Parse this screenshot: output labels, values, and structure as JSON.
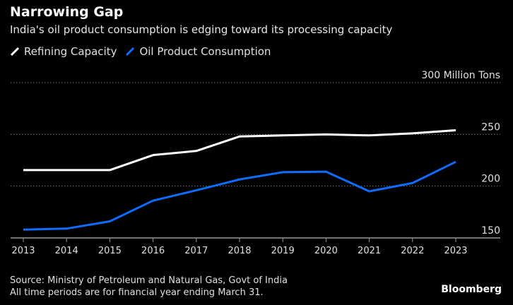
{
  "title": "Narrowing Gap",
  "subtitle": "India's oil product consumption is edging toward its processing capacity",
  "source": "Source: Ministry of Petroleum and Natural Gas, Govt of India",
  "note": "All time periods are for financial year ending March 31.",
  "brand": "Bloomberg",
  "chart_data": {
    "type": "line",
    "title": "Narrowing Gap",
    "ylabel": "Million Tons",
    "ylim": [
      150,
      300
    ],
    "yticks": [
      150,
      200,
      250,
      300
    ],
    "ytick_labels": [
      "150",
      "200",
      "250",
      "300 Million Tons"
    ],
    "grid": true,
    "legend_placement": "top-left",
    "x": [
      "2013",
      "2014",
      "2015",
      "2016",
      "2017",
      "2018",
      "2019",
      "2020",
      "2021",
      "2022",
      "2023"
    ],
    "series": [
      {
        "name": "Refining Capacity",
        "color": "#ffffff",
        "values": [
          215.5,
          215.5,
          215.5,
          230,
          234,
          248,
          249,
          250,
          249,
          251,
          254
        ]
      },
      {
        "name": "Oil Product Consumption",
        "color": "#0f6cff",
        "values": [
          158,
          159,
          166,
          186,
          196,
          206.5,
          213.5,
          214,
          195,
          203,
          223.5
        ]
      }
    ]
  }
}
